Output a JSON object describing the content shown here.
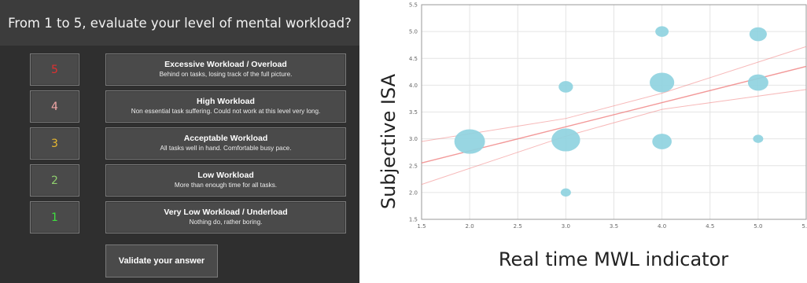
{
  "survey": {
    "question": "From 1 to 5, evaluate your level of mental workload?",
    "options": [
      {
        "number": "5",
        "number_color": "#e03030",
        "title": "Excessive Workload / Overload",
        "desc": "Behind on tasks, losing track of the full picture."
      },
      {
        "number": "4",
        "number_color": "#f2a7a7",
        "title": "High Workload",
        "desc": "Non essential task suffering. Could not work at this level very long."
      },
      {
        "number": "3",
        "number_color": "#e8b830",
        "title": "Acceptable Workload",
        "desc": "All tasks well in hand. Comfortable busy pace."
      },
      {
        "number": "2",
        "number_color": "#8fcf6e",
        "title": "Low Workload",
        "desc": "More than enough time for all tasks."
      },
      {
        "number": "1",
        "number_color": "#3fe03f",
        "title": "Very Low Workload / Underload",
        "desc": "Nothing do, rather boring."
      }
    ],
    "validate_label": "Validate your answer"
  },
  "chart_data": {
    "type": "scatter",
    "title": "",
    "xlabel": "Real time MWL indicator",
    "ylabel": "Subjective ISA",
    "xlim": [
      1.5,
      5.5
    ],
    "ylim": [
      1.5,
      5.5
    ],
    "xticks": [
      "1.5",
      "2.0",
      "2.5",
      "3.0",
      "3.5",
      "4.0",
      "4.5",
      "5.0",
      "5.5"
    ],
    "yticks": [
      "1.5",
      "2.0",
      "2.5",
      "3.0",
      "3.5",
      "4.0",
      "4.5",
      "5.0",
      "5.5"
    ],
    "grid": true,
    "point_color": "#8fd3e0",
    "line_color": "#f08080",
    "points": [
      {
        "x": 2.0,
        "y": 2.95,
        "size": 3.0
      },
      {
        "x": 3.0,
        "y": 2.0,
        "size": 1.0
      },
      {
        "x": 3.0,
        "y": 2.98,
        "size": 2.8
      },
      {
        "x": 3.0,
        "y": 3.97,
        "size": 1.4
      },
      {
        "x": 4.0,
        "y": 2.95,
        "size": 1.9
      },
      {
        "x": 4.0,
        "y": 4.05,
        "size": 2.4
      },
      {
        "x": 4.0,
        "y": 5.0,
        "size": 1.3
      },
      {
        "x": 5.0,
        "y": 3.0,
        "size": 1.0
      },
      {
        "x": 5.0,
        "y": 4.05,
        "size": 2.0
      },
      {
        "x": 5.0,
        "y": 4.95,
        "size": 1.7
      }
    ],
    "fit": {
      "x": [
        1.5,
        5.5
      ],
      "y": [
        2.55,
        4.35
      ]
    },
    "ci_upper": {
      "x": [
        1.5,
        3.0,
        4.0,
        5.5
      ],
      "y": [
        2.95,
        3.38,
        3.85,
        4.72
      ]
    },
    "ci_lower": {
      "x": [
        1.5,
        3.0,
        4.0,
        5.5
      ],
      "y": [
        2.15,
        3.05,
        3.55,
        3.92
      ]
    }
  }
}
